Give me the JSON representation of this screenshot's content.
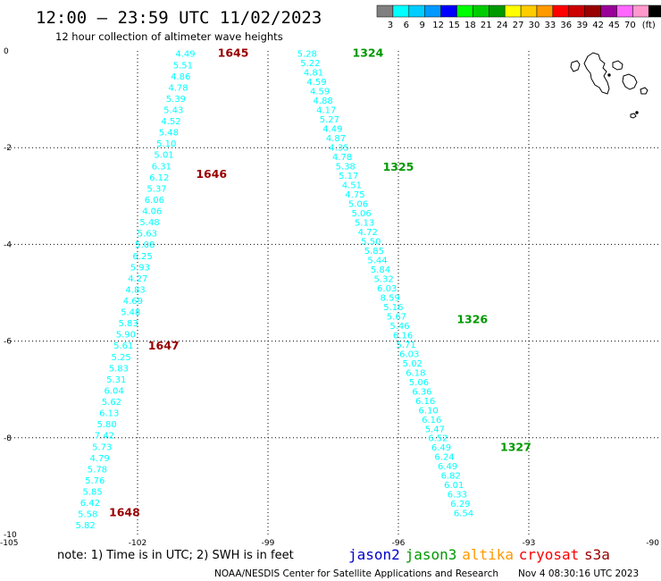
{
  "title": "12:00 – 23:59 UTC 11/02/2023",
  "subtitle": "12 hour collection of altimeter wave heights",
  "note": "note: 1) Time is in UTC; 2) SWH is in feet",
  "credit": "NOAA/NESDIS Center for Satellite Applications and Research",
  "generated": "Nov  4 08:30:16 UTC 2023",
  "satellites": [
    {
      "name": "jason2",
      "color": "#0000cc"
    },
    {
      "name": "jason3",
      "color": "#009900"
    },
    {
      "name": "altika",
      "color": "#ff9900"
    },
    {
      "name": "cryosat",
      "color": "#ff0000"
    },
    {
      "name": "s3a",
      "color": "#990000"
    }
  ],
  "legend": {
    "labels": [
      "3",
      "6",
      "9",
      "12",
      "15",
      "18",
      "21",
      "24",
      "27",
      "30",
      "33",
      "36",
      "39",
      "42",
      "45",
      "70",
      "(ft)"
    ],
    "colors": [
      "#808080",
      "#00ffff",
      "#00ccff",
      "#0099ff",
      "#0000ff",
      "#00ff00",
      "#00cc00",
      "#009900",
      "#ffff00",
      "#ffcc00",
      "#ff9900",
      "#ff0000",
      "#cc0000",
      "#990000",
      "#990099",
      "#ff66ff",
      "#ff99cc",
      "#000000"
    ]
  },
  "chart_data": {
    "type": "scatter",
    "xlim": [
      -105,
      -90
    ],
    "ylim": [
      -10,
      0
    ],
    "xticks": [
      "-105",
      "-102",
      "-99",
      "-96",
      "-93",
      "-90"
    ],
    "yticks": [
      "0",
      "-2",
      "-4",
      "-6",
      "-8",
      "-10"
    ],
    "tracks": [
      {
        "satellite": "s3a",
        "value_color": "#00ffff",
        "start": [
          -100.9,
          -0.05
        ],
        "end": [
          -103.2,
          -9.8
        ],
        "values": [
          "4.49",
          "5.51",
          "4.86",
          "4.78",
          "5.39",
          "5.43",
          "4.52",
          "5.48",
          "5.10",
          "5.01",
          "6.31",
          "6.12",
          "5.37",
          "6.06",
          "4.06",
          "5.48",
          "5.63",
          "5.08",
          "6.25",
          "5.93",
          "4.27",
          "4.83",
          "4.69",
          "5.48",
          "5.83",
          "5.90",
          "5.61",
          "5.25",
          "5.83",
          "5.31",
          "6.04",
          "5.62",
          "6.13",
          "5.80",
          "7.42",
          "5.73",
          "4.79",
          "5.78",
          "5.76",
          "5.85",
          "6.42",
          "5.58",
          "5.82"
        ],
        "times": [
          {
            "label": "1645",
            "x": -99.8,
            "y": -0.05
          },
          {
            "label": "1646",
            "x": -100.3,
            "y": -2.55
          },
          {
            "label": "1647",
            "x": -101.4,
            "y": -6.1
          },
          {
            "label": "1648",
            "x": -102.3,
            "y": -9.55
          }
        ]
      },
      {
        "satellite": "jason3",
        "value_color": "#00ffff",
        "start": [
          -98.1,
          -0.05
        ],
        "end": [
          -94.5,
          -9.55
        ],
        "values": [
          "5.28",
          "5.22",
          "4.81",
          "4.59",
          "4.59",
          "4.88",
          "4.17",
          "5.27",
          "4.49",
          "4.87",
          "4.35",
          "4.78",
          "5.38",
          "5.17",
          "4.51",
          "4.75",
          "5.06",
          "5.06",
          "5.13",
          "4.72",
          "5.50",
          "5.85",
          "5.44",
          "5.84",
          "5.32",
          "6.03",
          "8.59",
          "5.16",
          "5.67",
          "5.46",
          "6.16",
          "5.71",
          "6.03",
          "5.02",
          "6.18",
          "5.06",
          "6.36",
          "6.16",
          "6.10",
          "6.16",
          "5.47",
          "6.52",
          "6.49",
          "6.24",
          "6.49",
          "6.82",
          "6.01",
          "6.33",
          "6.29",
          "6.54"
        ],
        "times": [
          {
            "label": "1324",
            "x": -96.7,
            "y": -0.05
          },
          {
            "label": "1325",
            "x": -96.0,
            "y": -2.4
          },
          {
            "label": "1326",
            "x": -94.3,
            "y": -5.55
          },
          {
            "label": "1327",
            "x": -93.3,
            "y": -8.2
          }
        ]
      }
    ]
  }
}
